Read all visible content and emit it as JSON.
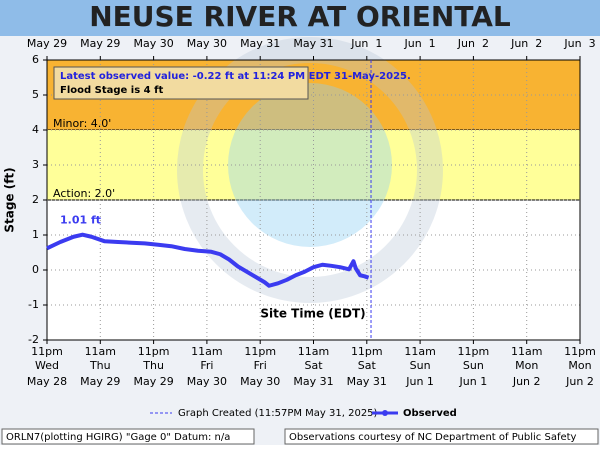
{
  "chart_data": {
    "type": "line",
    "title": "NEUSE RIVER AT ORIENTAL",
    "ylabel": "Stage (ft)",
    "xlabel": "Site Time (EDT)",
    "xlim": [
      0,
      120
    ],
    "ylim": [
      -2,
      6
    ],
    "yticks": [
      -2,
      -1,
      0,
      1,
      2,
      3,
      4,
      5,
      6
    ],
    "xticks": [
      {
        "value": 0,
        "label": "11pm"
      },
      {
        "value": 12,
        "label": "11am"
      },
      {
        "value": 24,
        "label": "11pm"
      },
      {
        "value": 36,
        "label": "11am"
      },
      {
        "value": 48,
        "label": "11pm"
      },
      {
        "value": 60,
        "label": "11am"
      },
      {
        "value": 72,
        "label": "11pm"
      },
      {
        "value": 84,
        "label": "11am"
      },
      {
        "value": 96,
        "label": "11pm"
      },
      {
        "value": 108,
        "label": "11am"
      },
      {
        "value": 120,
        "label": "11pm"
      }
    ],
    "xtick_days": [
      "Wed",
      "Thu",
      "Thu",
      "Fri",
      "Fri",
      "Sat",
      "Sat",
      "Sun",
      "Sun",
      "Mon",
      "Mon"
    ],
    "xtick_dates": [
      "May 28",
      "May 29",
      "May 29",
      "May 30",
      "May 30",
      "May 31",
      "May 31",
      "Jun 1",
      "Jun 1",
      "Jun 2",
      "Jun 2"
    ],
    "top_xticks": [
      {
        "value": 0,
        "label": "May 29"
      },
      {
        "value": 12,
        "label": "May 29"
      },
      {
        "value": 24,
        "label": "May 30"
      },
      {
        "value": 36,
        "label": "May 30"
      },
      {
        "value": 48,
        "label": "May 31"
      },
      {
        "value": 60,
        "label": "May 31"
      },
      {
        "value": 72,
        "label": "Jun  1"
      },
      {
        "value": 84,
        "label": "Jun  1"
      },
      {
        "value": 96,
        "label": "Jun  2"
      },
      {
        "value": 108,
        "label": "Jun  2"
      },
      {
        "value": 120,
        "label": "Jun  3"
      }
    ],
    "grid": true,
    "bands": [
      {
        "label": "Minor: 4.0'",
        "value": 4,
        "color": "#f8b332"
      },
      {
        "label": "Action: 2.0'",
        "value": 2,
        "color": "#ffff99"
      }
    ],
    "series": [
      {
        "name": "Observed",
        "color": "#3b3bf0",
        "x": [
          0,
          3,
          6,
          8,
          10,
          13,
          16,
          19,
          22,
          25,
          28,
          31,
          34,
          37,
          39,
          41,
          43,
          45,
          47,
          49,
          50,
          52,
          54,
          56,
          58,
          60,
          62,
          64,
          66,
          68,
          69,
          69.5,
          70.5,
          71.5,
          72.4
        ],
        "values": [
          0.62,
          0.8,
          0.95,
          1.01,
          0.95,
          0.82,
          0.8,
          0.78,
          0.76,
          0.72,
          0.68,
          0.6,
          0.55,
          0.52,
          0.45,
          0.3,
          0.1,
          -0.05,
          -0.2,
          -0.35,
          -0.45,
          -0.38,
          -0.28,
          -0.15,
          -0.05,
          0.08,
          0.15,
          0.12,
          0.08,
          0.02,
          0.25,
          0.05,
          -0.15,
          -0.18,
          -0.22
        ]
      }
    ],
    "peak_label": "1.01 ft",
    "info_latest": "Latest observed value: -0.22 ft at 11:24 PM EDT 31-May-2025.",
    "info_flood": "Flood Stage is 4 ft",
    "created_x": 72.95,
    "created_label": "Graph Created (11:57PM May 31, 2025)",
    "footer_left": "ORLN7(plotting HGIRG) \"Gage 0\" Datum: n/a",
    "footer_right": "Observations courtesy of NC Department of Public Safety"
  }
}
